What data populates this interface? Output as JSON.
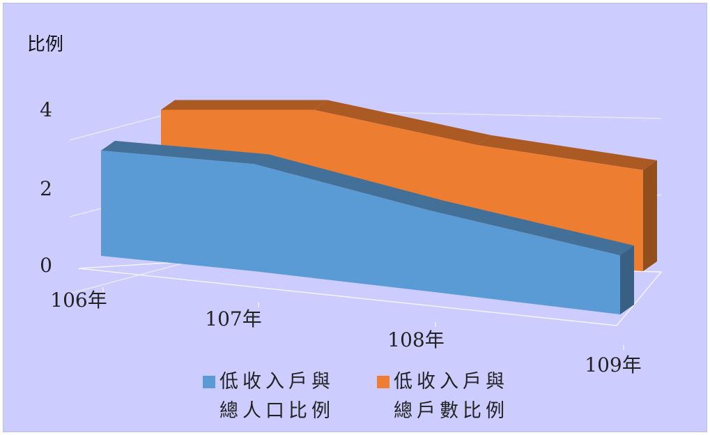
{
  "chart_data": {
    "type": "area",
    "view": "3d",
    "title": "",
    "ylabel": "比例",
    "xlabel": "",
    "categories": [
      "106年",
      "107年",
      "108年",
      "109年"
    ],
    "yticks": [
      0,
      2,
      4
    ],
    "ylim": [
      0,
      4
    ],
    "grid": true,
    "legend_position": "bottom",
    "series": [
      {
        "name": "低收入戶與總人口比例",
        "color": "#5b9bd5",
        "values": [
          2.85,
          2.9,
          2.2,
          1.6
        ]
      },
      {
        "name": "低收入戶與總戶數比例",
        "color": "#ed7d31",
        "values": [
          3.75,
          3.95,
          3.3,
          2.9
        ]
      }
    ]
  },
  "legend": [
    {
      "line1": "低收入戶與",
      "line2": "總人口比例",
      "color": "#5b9bd5"
    },
    {
      "line1": "低收入戶與",
      "line2": "總戶數比例",
      "color": "#ed7d31"
    }
  ]
}
